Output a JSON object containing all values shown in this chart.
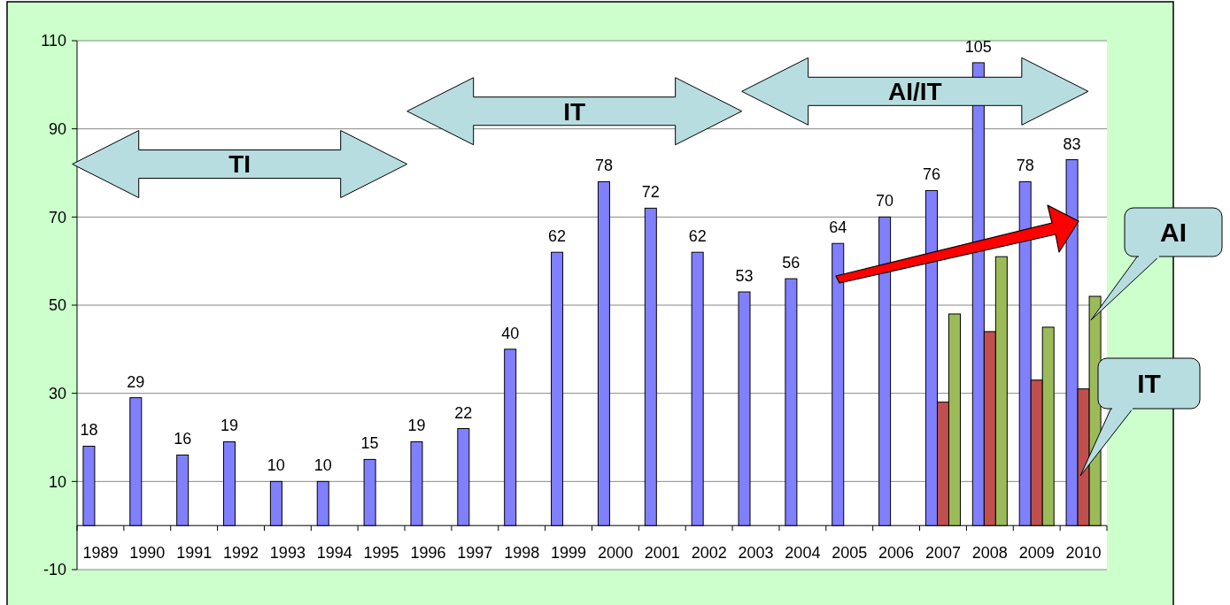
{
  "chart_data": {
    "type": "bar",
    "categories": [
      "1989",
      "1990",
      "1991",
      "1992",
      "1993",
      "1994",
      "1995",
      "1996",
      "1997",
      "1998",
      "1999",
      "2000",
      "2001",
      "2002",
      "2003",
      "2004",
      "2005",
      "2006",
      "2007",
      "2008",
      "2009",
      "2010"
    ],
    "series": [
      {
        "color": "#8080ff",
        "values": [
          18,
          29,
          16,
          19,
          10,
          10,
          15,
          19,
          22,
          40,
          62,
          78,
          72,
          62,
          53,
          56,
          64,
          70,
          76,
          105,
          78,
          83
        ],
        "value_labels": [
          "18",
          "29",
          "16",
          "19",
          "10",
          "10",
          "15",
          "19",
          "22",
          "40",
          "62",
          "78",
          "72",
          "62",
          "53",
          "56",
          "64",
          "70",
          "76",
          "105",
          "78",
          "83"
        ]
      },
      {
        "name": "IT",
        "color": "#c0504d",
        "values": [
          null,
          null,
          null,
          null,
          null,
          null,
          null,
          null,
          null,
          null,
          null,
          null,
          null,
          null,
          null,
          null,
          null,
          null,
          28,
          44,
          33,
          31
        ]
      },
      {
        "name": "AI",
        "color": "#9bbb59",
        "values": [
          null,
          null,
          null,
          null,
          null,
          null,
          null,
          null,
          null,
          null,
          null,
          null,
          null,
          null,
          null,
          null,
          null,
          null,
          48,
          61,
          45,
          52
        ]
      }
    ],
    "ylim": [
      -10,
      110
    ],
    "yticks": [
      -10,
      10,
      30,
      50,
      70,
      90,
      110
    ],
    "grid": "y",
    "annotations": [
      "TI",
      "IT",
      "AI/IT"
    ]
  }
}
